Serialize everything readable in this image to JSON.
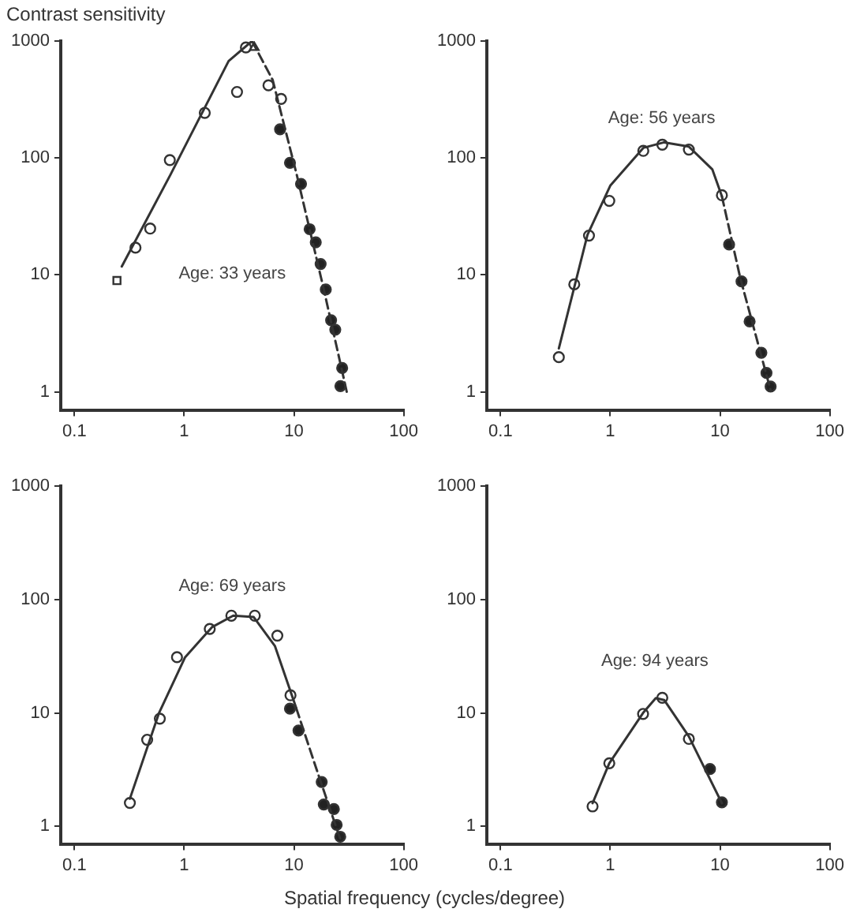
{
  "chart_data": [
    {
      "type": "scatter",
      "ylabel": "Contrast sensitivity",
      "log": "xy",
      "grid": false,
      "xlim": [
        0.075,
        100
      ],
      "ylim": [
        0.7,
        1000
      ],
      "xticks": [
        0.1,
        1,
        10,
        100
      ],
      "yticks": [
        1,
        10,
        100,
        1000
      ],
      "annotations": [
        "Age: 33 years"
      ],
      "series": [
        {
          "type": "line",
          "color": "#333333",
          "line_style": "solid",
          "marker": "none",
          "x": [
            0.27,
            0.75,
            2.54,
            4.15
          ],
          "values": [
            11.8,
            72,
            674,
            1000
          ]
        },
        {
          "type": "line",
          "color": "#333333",
          "line_style": "dashed",
          "marker": "none",
          "x": [
            4.15,
            6.4,
            10.6,
            18.6,
            30.5
          ],
          "values": [
            1000,
            465,
            72,
            7.7,
            0.97
          ]
        },
        {
          "type": "scatter",
          "color": "#ffffff",
          "marker": "square",
          "x": [
            0.244
          ],
          "values": [
            8.95
          ]
        },
        {
          "type": "scatter",
          "color": "#ffffff",
          "marker": "triangle",
          "x": [
            4.35
          ],
          "values": [
            881
          ]
        },
        {
          "type": "scatter",
          "color": "#ffffff",
          "marker": "circle",
          "x": [
            0.36,
            0.49,
            0.74,
            1.54,
            3.03,
            3.65,
            5.86,
            7.64
          ],
          "values": [
            17.1,
            24.9,
            96,
            243,
            367,
            881,
            418,
            320
          ]
        },
        {
          "type": "scatter",
          "color": "#222222",
          "marker": "circle",
          "x": [
            7.47,
            9.2,
            11.6,
            13.9,
            15.8,
            17.5,
            19.5,
            21.8,
            23.8,
            27.5,
            26.5
          ],
          "values": [
            176,
            91,
            60,
            24.6,
            19,
            12.4,
            7.5,
            4.1,
            3.4,
            1.6,
            1.12
          ]
        }
      ]
    },
    {
      "type": "scatter",
      "log": "xy",
      "grid": false,
      "xlim": [
        0.075,
        100
      ],
      "ylim": [
        0.7,
        1000
      ],
      "xticks": [
        0.1,
        1,
        10,
        100
      ],
      "yticks": [
        1,
        10,
        100,
        1000
      ],
      "annotations": [
        "Age: 56 years"
      ],
      "series": [
        {
          "type": "line",
          "color": "#333333",
          "line_style": "solid",
          "marker": "none",
          "x": [
            0.34,
            0.62,
            1.0,
            2.0,
            3.1,
            5.2,
            8.5,
            10.4
          ],
          "values": [
            2.35,
            22,
            58,
            122,
            136,
            125,
            80,
            47
          ]
        },
        {
          "type": "line",
          "color": "#333333",
          "line_style": "dashed",
          "marker": "none",
          "x": [
            10.4,
            15.3,
            29
          ],
          "values": [
            47,
            9.4,
            1.02
          ]
        },
        {
          "type": "scatter",
          "color": "#ffffff",
          "marker": "circle",
          "x": [
            0.34,
            0.47,
            0.64,
            0.98,
            2.0,
            2.98,
            5.2,
            10.4
          ],
          "values": [
            1.98,
            8.3,
            21.7,
            43,
            115,
            130,
            118,
            48
          ]
        },
        {
          "type": "scatter",
          "color": "#222222",
          "marker": "circle",
          "x": [
            12.1,
            15.7,
            18.6,
            23.8,
            26.5,
            28.9
          ],
          "values": [
            18.2,
            8.8,
            4.0,
            2.16,
            1.45,
            1.11
          ]
        }
      ]
    },
    {
      "type": "scatter",
      "xlabel": "Spatial frequency (cycles/degree)",
      "log": "xy",
      "grid": false,
      "xlim": [
        0.075,
        100
      ],
      "ylim": [
        0.7,
        1000
      ],
      "xticks": [
        0.1,
        1,
        10,
        100
      ],
      "yticks": [
        1,
        10,
        100,
        1000
      ],
      "annotations": [
        "Age: 69 years"
      ],
      "series": [
        {
          "type": "line",
          "color": "#333333",
          "line_style": "solid",
          "marker": "none",
          "x": [
            0.32,
            0.59,
            1.02,
            1.79,
            2.8,
            4.3,
            6.7,
            10.5
          ],
          "values": [
            1.75,
            10,
            31,
            57,
            72,
            70,
            39,
            11
          ]
        },
        {
          "type": "line",
          "color": "#333333",
          "line_style": "dashed",
          "marker": "none",
          "x": [
            10.5,
            16.4,
            26.7
          ],
          "values": [
            11,
            3.0,
            0.75
          ]
        },
        {
          "type": "scatter",
          "color": "#ffffff",
          "marker": "circle",
          "x": [
            0.32,
            0.46,
            0.6,
            0.86,
            1.71,
            2.69,
            4.4,
            7.06,
            9.3
          ],
          "values": [
            1.61,
            5.8,
            8.9,
            31,
            55,
            72,
            72,
            48,
            14.3
          ]
        },
        {
          "type": "scatter",
          "color": "#222222",
          "marker": "circle",
          "x": [
            9.2,
            11.0,
            17.9,
            18.7,
            23.1,
            24.5,
            26.4
          ],
          "values": [
            10.9,
            7.0,
            2.46,
            1.56,
            1.42,
            1.03,
            0.81
          ]
        }
      ]
    },
    {
      "type": "scatter",
      "log": "xy",
      "grid": false,
      "xlim": [
        0.075,
        100
      ],
      "ylim": [
        0.7,
        1000
      ],
      "xticks": [
        0.1,
        1,
        10,
        100
      ],
      "yticks": [
        1,
        10,
        100,
        1000
      ],
      "annotations": [
        "Age: 94 years"
      ],
      "series": [
        {
          "type": "line",
          "color": "#333333",
          "line_style": "solid",
          "marker": "none",
          "x": [
            0.69,
            0.98,
            1.99,
            2.6,
            3.1,
            5.2,
            10.4
          ],
          "values": [
            1.6,
            3.6,
            10,
            13.5,
            13,
            6.2,
            1.6
          ]
        },
        {
          "type": "scatter",
          "color": "#ffffff",
          "marker": "circle",
          "x": [
            0.69,
            0.98,
            1.99,
            2.98,
            5.2
          ],
          "values": [
            1.5,
            3.6,
            9.8,
            13.6,
            5.9
          ]
        },
        {
          "type": "scatter",
          "color": "#222222",
          "marker": "circle",
          "x": [
            8.1,
            10.4
          ],
          "values": [
            3.2,
            1.63
          ]
        }
      ]
    }
  ]
}
